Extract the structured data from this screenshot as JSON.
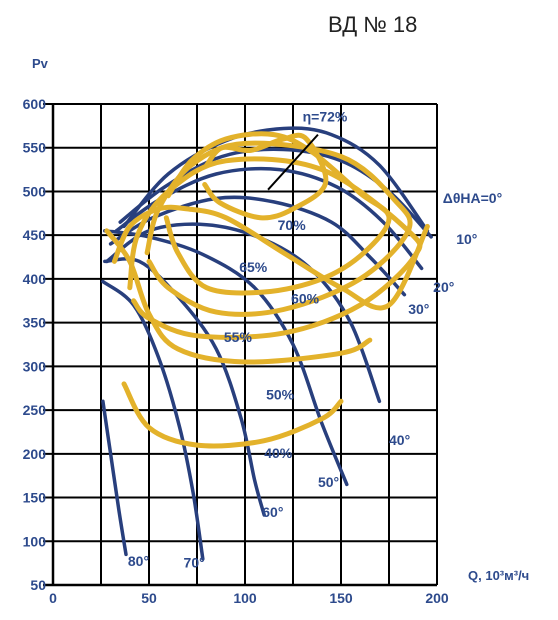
{
  "chart_data": {
    "type": "line",
    "title": "ВД № 18",
    "ylabel": "Pv",
    "xlabel": "Q, 10³м³/ч",
    "xlim": [
      0,
      200
    ],
    "ylim": [
      50,
      600
    ],
    "x_ticks": [
      "0",
      "50",
      "100",
      "150",
      "200"
    ],
    "y_ticks": [
      "50",
      "100",
      "150",
      "200",
      "250",
      "300",
      "350",
      "400",
      "450",
      "500",
      "550",
      "600"
    ],
    "grid": true,
    "series_blade_angle": [
      {
        "label": "ΔθНА=0°",
        "points": [
          [
            37,
            460
          ],
          [
            60,
            520
          ],
          [
            90,
            558
          ],
          [
            120,
            572
          ],
          [
            145,
            565
          ],
          [
            170,
            530
          ],
          [
            195,
            455
          ]
        ]
      },
      {
        "label": "10°",
        "points": [
          [
            35,
            465
          ],
          [
            58,
            505
          ],
          [
            88,
            540
          ],
          [
            120,
            548
          ],
          [
            150,
            535
          ],
          [
            175,
            500
          ],
          [
            197,
            448
          ]
        ]
      },
      {
        "label": "20°",
        "points": [
          [
            33,
            455
          ],
          [
            55,
            490
          ],
          [
            85,
            520
          ],
          [
            118,
            525
          ],
          [
            148,
            505
          ],
          [
            172,
            465
          ],
          [
            192,
            412
          ]
        ]
      },
      {
        "label": "30°",
        "points": [
          [
            30,
            440
          ],
          [
            52,
            470
          ],
          [
            85,
            492
          ],
          [
            115,
            488
          ],
          [
            145,
            465
          ],
          [
            165,
            425
          ],
          [
            183,
            382
          ]
        ]
      },
      {
        "label": "40°",
        "points": [
          [
            28,
            420
          ],
          [
            50,
            455
          ],
          [
            80,
            462
          ],
          [
            110,
            445
          ],
          [
            135,
            410
          ],
          [
            155,
            350
          ],
          [
            170,
            260
          ]
        ]
      },
      {
        "label": "50°",
        "points": [
          [
            27,
            455
          ],
          [
            50,
            448
          ],
          [
            78,
            428
          ],
          [
            105,
            390
          ],
          [
            125,
            325
          ],
          [
            140,
            235
          ],
          [
            153,
            165
          ]
        ]
      },
      {
        "label": "60°",
        "points": [
          [
            27,
            420
          ],
          [
            45,
            420
          ],
          [
            65,
            380
          ],
          [
            85,
            320
          ],
          [
            98,
            240
          ],
          [
            105,
            170
          ],
          [
            110,
            130
          ]
        ]
      },
      {
        "label": "70°",
        "points": [
          [
            26,
            397
          ],
          [
            42,
            370
          ],
          [
            55,
            310
          ],
          [
            66,
            230
          ],
          [
            73,
            155
          ],
          [
            78,
            80
          ]
        ]
      },
      {
        "label": "80°",
        "points": [
          [
            26,
            260
          ],
          [
            30,
            200
          ],
          [
            34,
            140
          ],
          [
            38,
            85
          ]
        ]
      }
    ],
    "series_efficiency": [
      {
        "label": "η=72%",
        "points": [
          [
            80,
            530
          ],
          [
            88,
            550
          ],
          [
            103,
            547
          ],
          [
            120,
            560
          ],
          [
            132,
            560
          ],
          [
            142,
            510
          ],
          [
            125,
            480
          ],
          [
            108,
            470
          ],
          [
            87,
            487
          ],
          [
            79,
            508
          ]
        ]
      },
      {
        "label": "70%",
        "points": [
          [
            60,
            495
          ],
          [
            72,
            535
          ],
          [
            90,
            560
          ],
          [
            115,
            565
          ],
          [
            135,
            545
          ],
          [
            160,
            498
          ],
          [
            175,
            470
          ],
          [
            162,
            430
          ],
          [
            140,
            400
          ],
          [
            110,
            385
          ],
          [
            80,
            390
          ],
          [
            65,
            430
          ],
          [
            59,
            470
          ]
        ]
      },
      {
        "label": "65%",
        "points": [
          [
            49,
            430
          ],
          [
            55,
            480
          ],
          [
            72,
            530
          ],
          [
            100,
            555
          ],
          [
            150,
            540
          ],
          [
            178,
            490
          ],
          [
            185,
            455
          ],
          [
            160,
            400
          ],
          [
            120,
            365
          ],
          [
            85,
            362
          ],
          [
            60,
            390
          ],
          [
            50,
            420
          ]
        ]
      },
      {
        "label": "60%",
        "points": [
          [
            40,
            390
          ],
          [
            44,
            450
          ],
          [
            60,
            500
          ],
          [
            90,
            535
          ],
          [
            140,
            525
          ],
          [
            185,
            455
          ],
          [
            188,
            425
          ],
          [
            160,
            370
          ],
          [
            120,
            338
          ],
          [
            75,
            335
          ],
          [
            50,
            355
          ],
          [
            42,
            375
          ]
        ]
      },
      {
        "label": "55%",
        "points": [
          [
            32,
            420
          ],
          [
            40,
            460
          ],
          [
            55,
            480
          ],
          [
            70,
            480
          ],
          [
            90,
            470
          ],
          [
            120,
            430
          ],
          [
            150,
            390
          ],
          [
            175,
            370
          ],
          [
            195,
            460
          ]
        ]
      },
      {
        "label": "50%",
        "points": [
          [
            28,
            455
          ],
          [
            40,
            420
          ],
          [
            50,
            360
          ],
          [
            65,
            320
          ],
          [
            100,
            305
          ],
          [
            150,
            315
          ],
          [
            165,
            330
          ]
        ]
      },
      {
        "label": "40%",
        "points": [
          [
            37,
            280
          ],
          [
            50,
            230
          ],
          [
            75,
            210
          ],
          [
            110,
            215
          ],
          [
            140,
            240
          ],
          [
            150,
            260
          ]
        ]
      }
    ],
    "annotations": [
      {
        "text": "η=72%",
        "x": 130,
        "y": 580
      },
      {
        "text": "70%",
        "x": 117,
        "y": 456
      },
      {
        "text": "65%",
        "x": 97,
        "y": 408
      },
      {
        "text": "60%",
        "x": 124,
        "y": 372
      },
      {
        "text": "55%",
        "x": 89,
        "y": 328
      },
      {
        "text": "50%",
        "x": 111,
        "y": 262
      },
      {
        "text": "40%",
        "x": 110,
        "y": 195
      },
      {
        "text": "ΔθНА=0°",
        "x": 203,
        "y": 487
      },
      {
        "text": "10°",
        "x": 210,
        "y": 440
      },
      {
        "text": "20°",
        "x": 198,
        "y": 385
      },
      {
        "text": "30°",
        "x": 185,
        "y": 360
      },
      {
        "text": "40°",
        "x": 175,
        "y": 210
      },
      {
        "text": "50°",
        "x": 138,
        "y": 162
      },
      {
        "text": "60°",
        "x": 109,
        "y": 128
      },
      {
        "text": "70°",
        "x": 68,
        "y": 70
      },
      {
        "text": "80°",
        "x": 39,
        "y": 72
      }
    ]
  }
}
